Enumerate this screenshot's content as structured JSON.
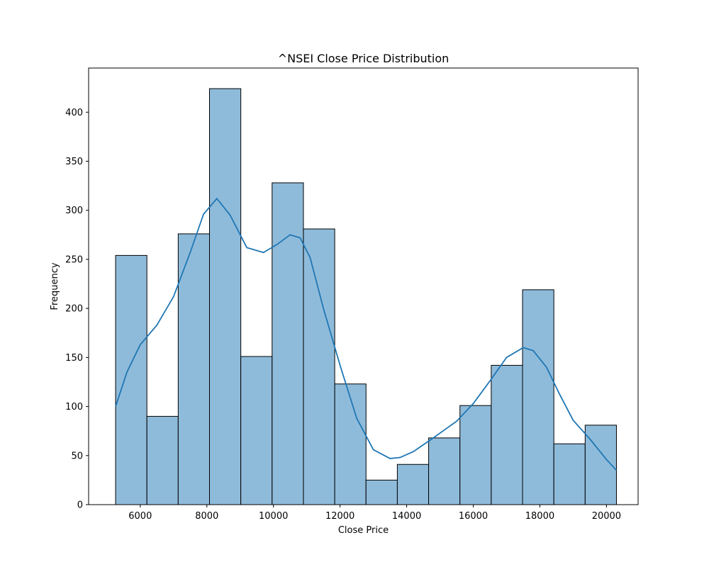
{
  "chart_data": {
    "type": "histogram",
    "title": "^NSEI Close Price Distribution",
    "xlabel": "Close Price",
    "ylabel": "Frequency",
    "xlim": [
      4450,
      20950
    ],
    "ylim": [
      0,
      445
    ],
    "x_ticks": [
      6000,
      8000,
      10000,
      12000,
      14000,
      16000,
      18000,
      20000
    ],
    "y_ticks": [
      0,
      50,
      100,
      150,
      200,
      250,
      300,
      350,
      400
    ],
    "bins": [
      {
        "start": 5260,
        "end": 6200,
        "count": 254
      },
      {
        "start": 6200,
        "end": 7140,
        "count": 90
      },
      {
        "start": 7140,
        "end": 8080,
        "count": 276
      },
      {
        "start": 8080,
        "end": 9020,
        "count": 424
      },
      {
        "start": 9020,
        "end": 9960,
        "count": 151
      },
      {
        "start": 9960,
        "end": 10900,
        "count": 328
      },
      {
        "start": 10900,
        "end": 11840,
        "count": 281
      },
      {
        "start": 11840,
        "end": 12780,
        "count": 123
      },
      {
        "start": 12780,
        "end": 13720,
        "count": 25
      },
      {
        "start": 13720,
        "end": 14660,
        "count": 41
      },
      {
        "start": 14660,
        "end": 15600,
        "count": 68
      },
      {
        "start": 15600,
        "end": 16540,
        "count": 101
      },
      {
        "start": 16540,
        "end": 17480,
        "count": 142
      },
      {
        "start": 17480,
        "end": 18420,
        "count": 219
      },
      {
        "start": 18420,
        "end": 19360,
        "count": 62
      },
      {
        "start": 19360,
        "end": 20300,
        "count": 81
      }
    ],
    "kde": {
      "x": [
        5260,
        5600,
        6000,
        6500,
        7000,
        7500,
        7900,
        8300,
        8700,
        9200,
        9700,
        10100,
        10500,
        10800,
        11100,
        11500,
        12000,
        12500,
        13000,
        13500,
        13800,
        14200,
        14800,
        15500,
        16000,
        16500,
        17000,
        17500,
        17800,
        18200,
        18600,
        19000,
        19500,
        20000,
        20300
      ],
      "y": [
        100,
        135,
        163,
        183,
        212,
        257,
        296,
        312,
        295,
        262,
        257,
        265,
        275,
        272,
        252,
        200,
        142,
        88,
        56,
        47,
        48,
        54,
        68,
        85,
        103,
        126,
        150,
        160,
        157,
        140,
        112,
        86,
        67,
        46,
        35
      ]
    },
    "bar_color": "#8fbbda",
    "bar_edge_color": "#000000",
    "kde_color": "#1f77b4",
    "grid": false,
    "legend": "none"
  }
}
